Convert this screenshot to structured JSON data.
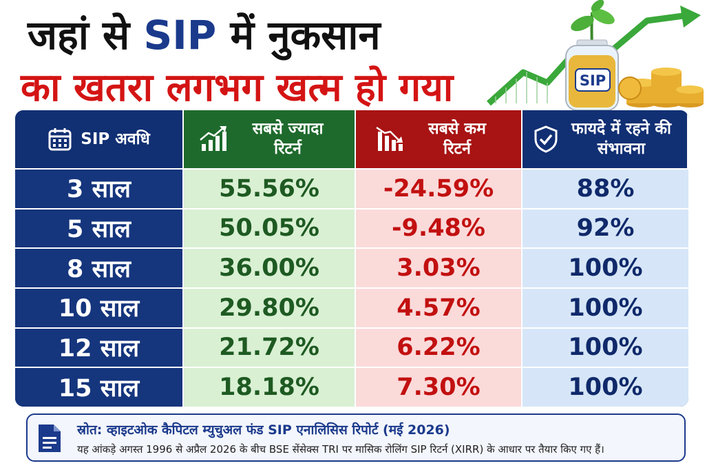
{
  "title": {
    "line1_prefix": "जहां से ",
    "line1_highlight": "SIP",
    "line1_suffix": " में नुकसान",
    "line2": "का खतरा लगभग खत्म हो गया"
  },
  "illustration": {
    "jar_label": "SIP",
    "icons": [
      "plant-sprout-icon",
      "coin-jar-icon",
      "coin-stack-icon",
      "growth-arrow-icon"
    ]
  },
  "table": {
    "headers": [
      {
        "label": "SIP अवधि",
        "icon": "calendar-icon"
      },
      {
        "label": "सबसे ज्यादा रिटर्न",
        "icon": "bar-chart-up-icon"
      },
      {
        "label": "सबसे कम रिटर्न",
        "icon": "bar-chart-down-icon"
      },
      {
        "label": "फायदे में रहने की संभावना",
        "icon": "shield-check-icon"
      }
    ],
    "rows": [
      {
        "period": "3 साल",
        "highest": "55.56%",
        "lowest": "-24.59%",
        "probability": "88%"
      },
      {
        "period": "5 साल",
        "highest": "50.05%",
        "lowest": "-9.48%",
        "probability": "92%"
      },
      {
        "period": "8 साल",
        "highest": "36.00%",
        "lowest": "3.03%",
        "probability": "100%"
      },
      {
        "period": "10 साल",
        "highest": "29.80%",
        "lowest": "4.57%",
        "probability": "100%"
      },
      {
        "period": "12 साल",
        "highest": "21.72%",
        "lowest": "6.22%",
        "probability": "100%"
      },
      {
        "period": "15 साल",
        "highest": "18.18%",
        "lowest": "7.30%",
        "probability": "100%"
      }
    ]
  },
  "footnote": {
    "icon": "document-icon",
    "source": "स्रोत: व्हाइटओक कैपिटल म्युचुअल फंड SIP एनालिसिस रिपोर्ट (मई 2026)",
    "detail": "यह आंकड़े अगस्त 1996 से अप्रैल 2026 के बीच BSE सेंसेक्स TRI पर मासिक रोलिंग SIP रिटर्न (XIRR) के आधार पर तैयार किए गए हैं।"
  },
  "colors": {
    "navy": "#112f73",
    "green": "#1e6a2c",
    "red": "#a81313",
    "title_red": "#d41414"
  }
}
